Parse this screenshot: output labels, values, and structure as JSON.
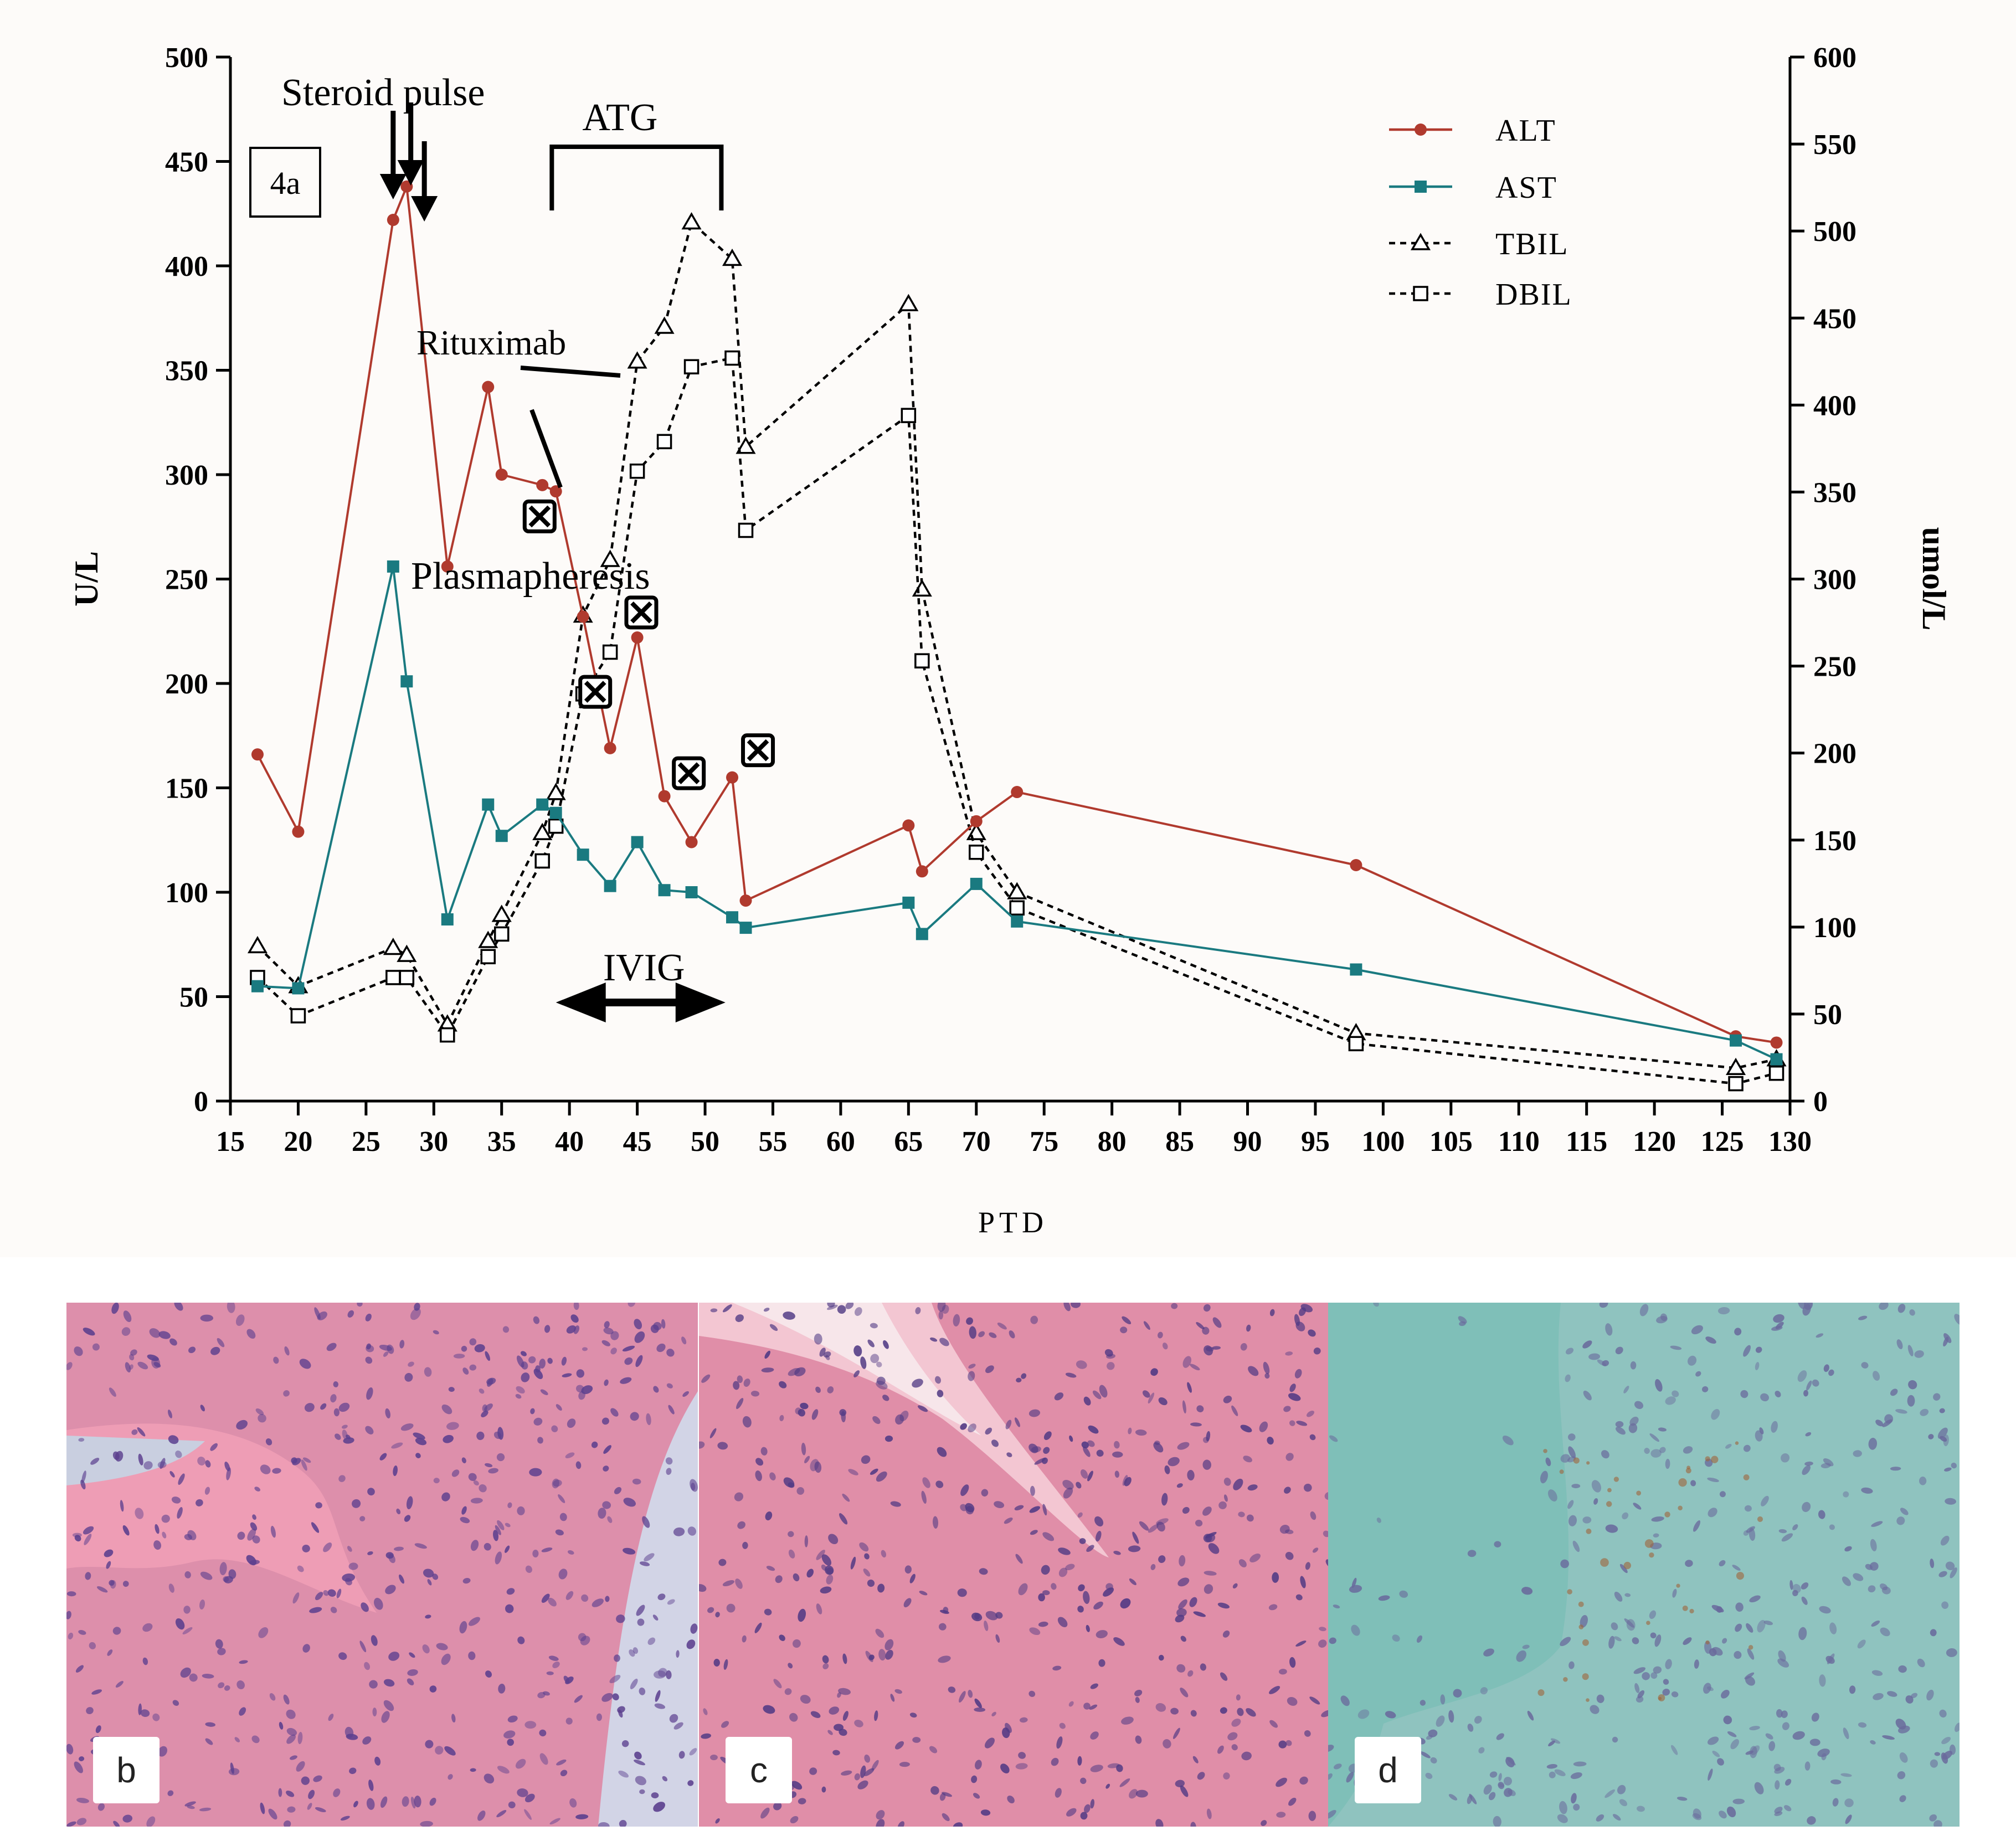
{
  "chart_data": {
    "type": "line",
    "panel_label": "4a",
    "xlabel": "PTD",
    "ylabel_left": "U/L",
    "ylabel_right": "umol/L",
    "xlim": [
      15,
      130
    ],
    "ylim_left": [
      0,
      500
    ],
    "ylim_right": [
      0,
      600
    ],
    "x_ticks": [
      15,
      20,
      25,
      30,
      35,
      40,
      45,
      50,
      55,
      60,
      65,
      70,
      75,
      80,
      85,
      90,
      95,
      100,
      105,
      110,
      115,
      120,
      125,
      130
    ],
    "y_ticks_left": [
      0,
      50,
      100,
      150,
      200,
      250,
      300,
      350,
      400,
      450,
      500
    ],
    "y_ticks_right": [
      0,
      50,
      100,
      150,
      200,
      250,
      300,
      350,
      400,
      450,
      500,
      550,
      600
    ],
    "grid": false,
    "legend_position": "top-right",
    "series": [
      {
        "name": "ALT",
        "axis": "left",
        "color": "#b03a2e",
        "marker": "circle",
        "line": "solid",
        "x": [
          17,
          20,
          27,
          28,
          31,
          34,
          35,
          38,
          39,
          41,
          43,
          45,
          47,
          49,
          52,
          53,
          65,
          66,
          70,
          73,
          98,
          126,
          129
        ],
        "y": [
          166,
          129,
          422,
          438,
          256,
          342,
          300,
          295,
          292,
          232,
          169,
          222,
          146,
          124,
          155,
          96,
          132,
          110,
          134,
          148,
          113,
          31,
          28
        ]
      },
      {
        "name": "AST",
        "axis": "left",
        "color": "#1a7a80",
        "marker": "square",
        "line": "solid",
        "x": [
          17,
          20,
          27,
          28,
          31,
          34,
          35,
          38,
          39,
          41,
          43,
          45,
          47,
          49,
          52,
          53,
          65,
          66,
          70,
          73,
          98,
          126,
          129
        ],
        "y": [
          55,
          54,
          256,
          201,
          87,
          142,
          127,
          142,
          138,
          118,
          103,
          124,
          101,
          100,
          88,
          83,
          95,
          80,
          104,
          86,
          63,
          29,
          20
        ]
      },
      {
        "name": "TBIL",
        "axis": "right",
        "color": "#000000",
        "marker": "triangle",
        "line": "dashed",
        "x": [
          17,
          20,
          27,
          28,
          31,
          34,
          35,
          38,
          39,
          41,
          43,
          45,
          47,
          49,
          52,
          53,
          65,
          66,
          70,
          73,
          98,
          126,
          129
        ],
        "y": [
          89,
          66,
          88,
          84,
          44,
          92,
          107,
          154,
          177,
          279,
          311,
          425,
          445,
          505,
          484,
          376,
          458,
          294,
          154,
          120,
          39,
          19,
          24
        ]
      },
      {
        "name": "DBIL",
        "axis": "right",
        "color": "#000000",
        "marker": "square-open",
        "line": "dashed",
        "x": [
          17,
          20,
          27,
          28,
          31,
          34,
          35,
          38,
          39,
          41,
          43,
          45,
          47,
          49,
          52,
          53,
          65,
          66,
          70,
          73,
          98,
          126,
          129
        ],
        "y": [
          71,
          49,
          71,
          71,
          38,
          83,
          96,
          138,
          158,
          234,
          258,
          362,
          379,
          422,
          427,
          328,
          394,
          253,
          143,
          111,
          33,
          10,
          16
        ]
      }
    ],
    "annotations": {
      "steroid_pulse": {
        "text": "Steroid pulse",
        "days": [
          27,
          28.3,
          29.3
        ]
      },
      "atg": {
        "text": "ATG",
        "start": 38.7,
        "end": 51.2
      },
      "rituximab": {
        "text": "Rituximab"
      },
      "plasmapheresis": {
        "text": "Plasmapheresis",
        "days": [
          37.8,
          41.9,
          45.3,
          48.8,
          53.9
        ],
        "levels": [
          280,
          196,
          234,
          157,
          168
        ]
      },
      "ivig": {
        "text": "IVIG",
        "start": 39,
        "end": 51.5
      }
    }
  },
  "micro_panels": [
    {
      "label": "b",
      "stain": "he",
      "colors": {
        "base": "#dd8fab",
        "accent": "#ee9db5",
        "nuclei": "#5b3f8e"
      }
    },
    {
      "label": "c",
      "stain": "he",
      "colors": {
        "base": "#e08ea8",
        "accent": "#e8769a",
        "nuclei": "#513a84"
      }
    },
    {
      "label": "d",
      "stain": "ihc",
      "colors": {
        "base": "#8fc3bf",
        "accent": "#a6c9c6",
        "nuclei": "#6a6a9c"
      }
    }
  ]
}
